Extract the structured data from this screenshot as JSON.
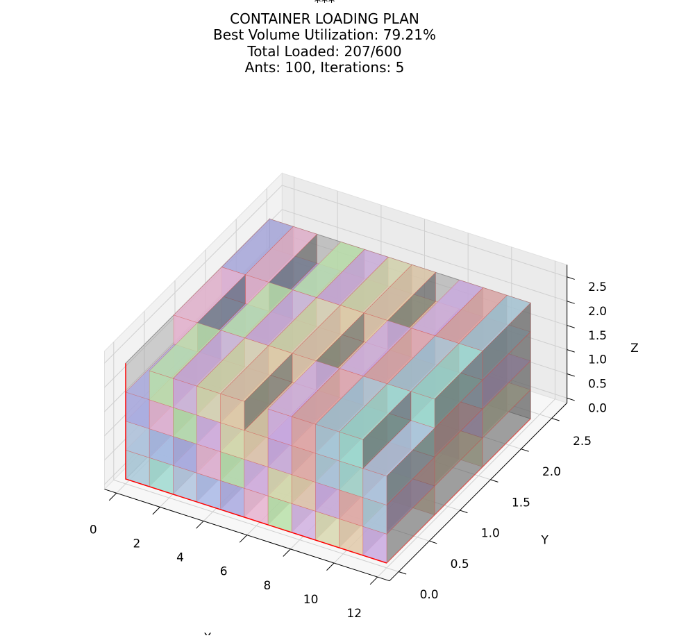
{
  "chart_data": {
    "type": "3d-box",
    "title_lines": [
      "***",
      "CONTAINER LOADING PLAN",
      "Best Volume Utilization: 79.21%",
      "Total Loaded: 207/600",
      "Ants: 100, Iterations: 5"
    ],
    "xlabel": "X",
    "ylabel": "Y",
    "zlabel": "Z",
    "xlim": [
      0,
      12
    ],
    "ylim": [
      0,
      2.5
    ],
    "zlim": [
      0,
      2.5
    ],
    "container": {
      "length": 12,
      "width": 2.35,
      "height": 2.39
    },
    "grid": true,
    "x_ticks": [
      "0",
      "2",
      "4",
      "6",
      "8",
      "10",
      "12"
    ],
    "y_ticks": [
      "0.0",
      "0.5",
      "1.0",
      "1.5",
      "2.0",
      "2.5"
    ],
    "z_ticks": [
      "0.0",
      "0.5",
      "1.0",
      "1.5",
      "2.0",
      "2.5"
    ],
    "colors": {
      "container": "#9e9e9e",
      "box_edge": "#d9534f",
      "front_edge": "#ff0000",
      "box_palette": [
        "#a8c8d8",
        "#e6b3d0",
        "#c9a9e0",
        "#a9b8e6",
        "#d8d8b0",
        "#9fd9d0",
        "#b9e0a9",
        "#e0a9a9",
        "#a9a9e0",
        "#e0c9a9",
        "#b0c4de",
        "#d0b0e0"
      ]
    }
  }
}
